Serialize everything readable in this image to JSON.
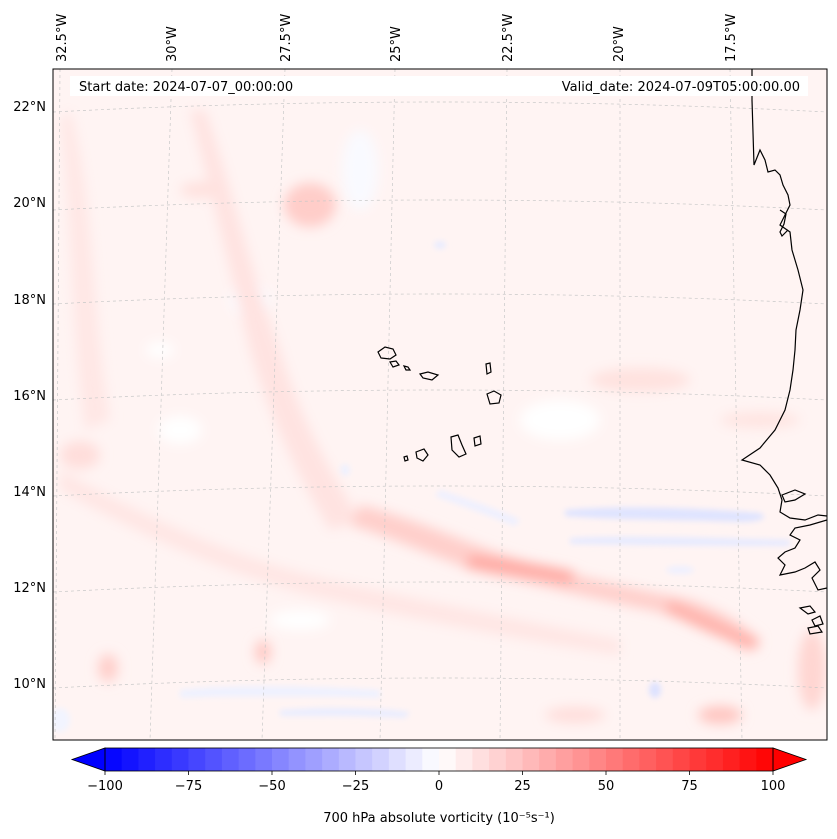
{
  "map": {
    "type": "filled-contour-map",
    "projection": "Lambert Conformal",
    "region": "Eastern tropical Atlantic / Cape Verde / West Africa",
    "start_label": "Start date: 2024-07-07_00:00:00",
    "valid_label": "Valid_date: 2024-07-09T05:00:00.00",
    "lon_labels": [
      "32.5°W",
      "30°W",
      "27.5°W",
      "25°W",
      "22.5°W",
      "20°W",
      "17.5°W"
    ],
    "lat_labels": [
      "22°N",
      "20°N",
      "18°N",
      "16°N",
      "14°N",
      "12°N",
      "10°N"
    ],
    "colorbar": {
      "label": "700 hPa absolute vorticity (10⁻⁵s⁻¹)",
      "min": -100,
      "max": 100,
      "extend": "both",
      "cmap": "bwr",
      "tick_labels": [
        "−100",
        "−75",
        "−50",
        "−25",
        "0",
        "25",
        "50",
        "75",
        "100"
      ]
    },
    "features": [
      {
        "name": "vorticity-maximum-band",
        "value": 50,
        "lat_range": [
          10.8,
          12.6
        ],
        "lon_range": [
          -24,
          -17
        ]
      },
      {
        "name": "positive-streak-west",
        "value": 15,
        "lat_range": [
          11,
          21
        ],
        "lon_range": [
          -32,
          -26
        ]
      },
      {
        "name": "negative-band-coast",
        "value": -15,
        "lat": 13.2,
        "lon_range": [
          -19,
          -16
        ]
      }
    ],
    "colors": {
      "positive_max": "#ff0000",
      "negative_max": "#0000ff",
      "neutral": "#ffffff",
      "background_field": "#fff4f3",
      "coastline": "#000000",
      "gridline": "#c8c8c8"
    }
  }
}
